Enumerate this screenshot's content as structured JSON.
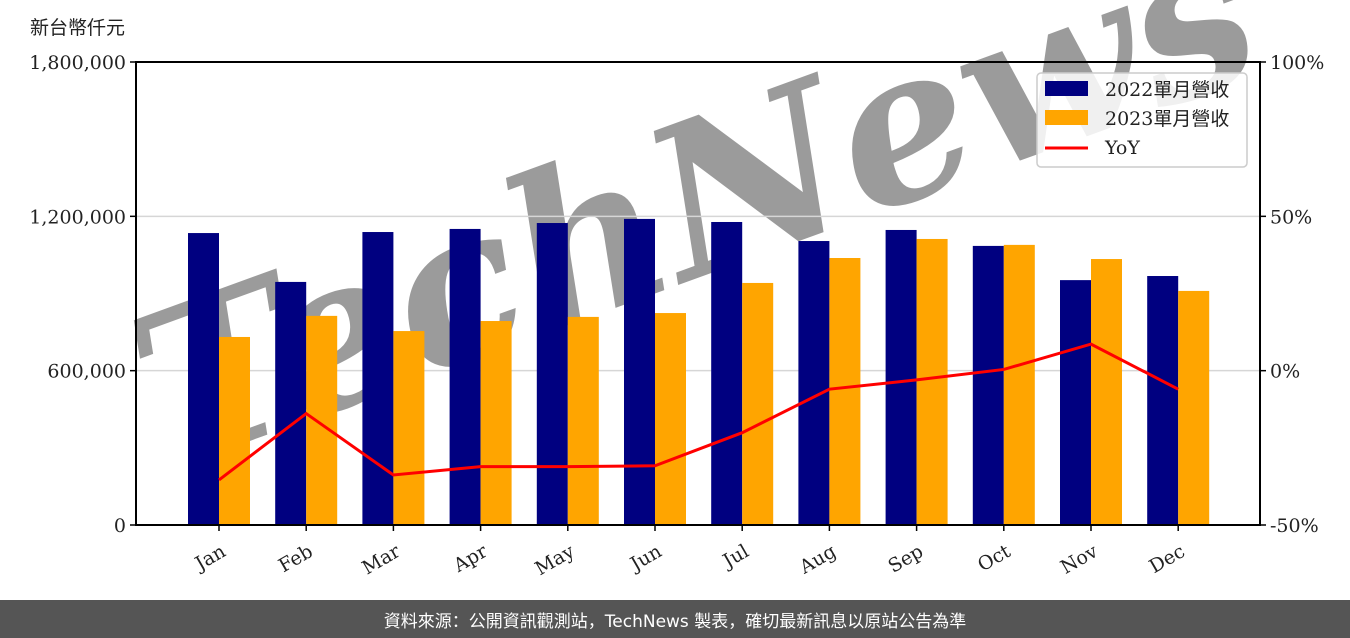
{
  "chart_data": {
    "type": "bar",
    "title": "",
    "unit_label": "新台幣仟元",
    "xlabel": "",
    "ylabel": "新台幣仟元",
    "y2label": "",
    "categories": [
      "Jan",
      "Feb",
      "Mar",
      "Apr",
      "May",
      "Jun",
      "Jul",
      "Aug",
      "Sep",
      "Oct",
      "Nov",
      "Dec"
    ],
    "series": [
      {
        "name": "2022單月營收",
        "type": "bar",
        "axis": "left",
        "color": "#000080",
        "values": [
          1135000,
          945000,
          1139000,
          1151000,
          1174000,
          1190000,
          1178000,
          1104000,
          1147000,
          1085000,
          952000,
          968000
        ]
      },
      {
        "name": "2023單月營收",
        "type": "bar",
        "axis": "left",
        "color": "#FFA500",
        "values": [
          731000,
          813000,
          754000,
          793000,
          809000,
          824000,
          941000,
          1038000,
          1112000,
          1089000,
          1034000,
          910000
        ]
      },
      {
        "name": "YoY",
        "type": "line",
        "axis": "right",
        "color": "#FF0000",
        "values": [
          -35.4,
          -13.9,
          -33.8,
          -31.1,
          -31.1,
          -30.8,
          -20.1,
          -6.0,
          -3.0,
          0.4,
          8.6,
          -6.0
        ]
      }
    ],
    "ylim": [
      0,
      1800000
    ],
    "yticks": [
      "0",
      "600,000",
      "1,200,000",
      "1,800,000"
    ],
    "ytick_values": [
      0,
      600000,
      1200000,
      1800000
    ],
    "y2lim": [
      -50,
      100
    ],
    "y2ticks": [
      "-50%",
      "0%",
      "50%",
      "100%"
    ],
    "y2tick_values": [
      -50,
      0,
      50,
      100
    ],
    "grid": true,
    "legend_position": "upper right"
  },
  "watermark": "TechNews",
  "footer": {
    "text": "資料來源：公開資訊觀測站，TechNews 製表，確切最新訊息以原站公告為準"
  }
}
